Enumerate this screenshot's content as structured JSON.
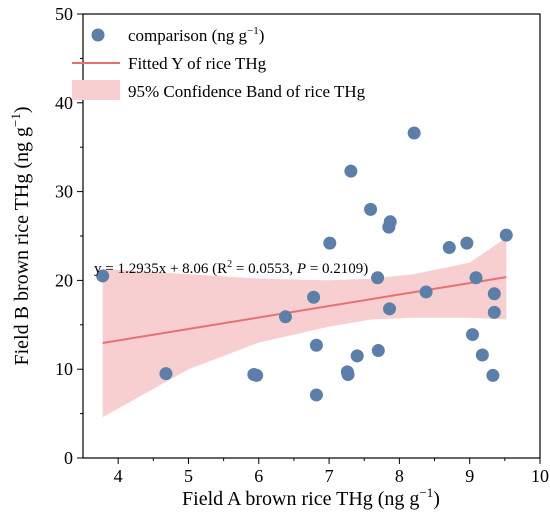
{
  "chart_data": {
    "type": "scatter",
    "xlabel": "Field A brown rice THg (ng g",
    "xlabel_sup": "−1",
    "xlabel_end": ")",
    "ylabel": "Field B brown rice THg (ng g",
    "ylabel_sup": "−1",
    "ylabel_end": ")",
    "xlim": [
      3.5,
      10
    ],
    "ylim": [
      0,
      50
    ],
    "x_ticks": [
      4,
      5,
      6,
      7,
      8,
      9,
      10
    ],
    "y_ticks": [
      0,
      10,
      20,
      30,
      40,
      50
    ],
    "grid": false,
    "legend_position": "top-left",
    "legend": {
      "points_label": "comparison (ng g",
      "points_label_sup": "−1",
      "points_label_end": ")",
      "fit_label": "Fitted Y of rice THg",
      "band_label": "95% Confidence Band of rice THg"
    },
    "colors": {
      "points": "#5b7fa8",
      "fit_line": "#e8716f",
      "band": "#f7cfd0",
      "axis": "#000000"
    },
    "points": [
      {
        "x": 3.78,
        "y": 20.5
      },
      {
        "x": 4.68,
        "y": 9.5
      },
      {
        "x": 5.93,
        "y": 9.4
      },
      {
        "x": 5.97,
        "y": 9.3
      },
      {
        "x": 6.38,
        "y": 15.9
      },
      {
        "x": 6.78,
        "y": 18.1
      },
      {
        "x": 6.82,
        "y": 12.7
      },
      {
        "x": 6.82,
        "y": 7.1
      },
      {
        "x": 7.01,
        "y": 24.2
      },
      {
        "x": 7.26,
        "y": 9.7
      },
      {
        "x": 7.27,
        "y": 9.4
      },
      {
        "x": 7.31,
        "y": 32.3
      },
      {
        "x": 7.4,
        "y": 11.5
      },
      {
        "x": 7.59,
        "y": 28.0
      },
      {
        "x": 7.69,
        "y": 20.3
      },
      {
        "x": 7.7,
        "y": 12.1
      },
      {
        "x": 7.85,
        "y": 26.0
      },
      {
        "x": 7.86,
        "y": 16.8
      },
      {
        "x": 7.87,
        "y": 26.6
      },
      {
        "x": 8.21,
        "y": 36.6
      },
      {
        "x": 8.38,
        "y": 18.7
      },
      {
        "x": 8.71,
        "y": 23.7
      },
      {
        "x": 8.96,
        "y": 24.2
      },
      {
        "x": 9.04,
        "y": 13.9
      },
      {
        "x": 9.09,
        "y": 20.3
      },
      {
        "x": 9.18,
        "y": 11.6
      },
      {
        "x": 9.33,
        "y": 9.3
      },
      {
        "x": 9.35,
        "y": 18.5
      },
      {
        "x": 9.35,
        "y": 16.4
      },
      {
        "x": 9.52,
        "y": 25.1
      }
    ],
    "fit": {
      "slope": 1.2935,
      "intercept": 8.06,
      "x_range": [
        3.78,
        9.52
      ]
    },
    "band": {
      "upper": [
        {
          "x": 3.78,
          "y": 21.3
        },
        {
          "x": 5.0,
          "y": 20.7
        },
        {
          "x": 6.0,
          "y": 20.2
        },
        {
          "x": 7.0,
          "y": 20.0
        },
        {
          "x": 7.6,
          "y": 20.2
        },
        {
          "x": 8.2,
          "y": 20.7
        },
        {
          "x": 9.0,
          "y": 22.0
        },
        {
          "x": 9.52,
          "y": 24.8
        }
      ],
      "lower": [
        {
          "x": 3.78,
          "y": 4.6
        },
        {
          "x": 5.0,
          "y": 10.0
        },
        {
          "x": 6.0,
          "y": 13.0
        },
        {
          "x": 7.0,
          "y": 14.8
        },
        {
          "x": 7.6,
          "y": 15.6
        },
        {
          "x": 8.2,
          "y": 15.8
        },
        {
          "x": 9.0,
          "y": 15.8
        },
        {
          "x": 9.52,
          "y": 15.6
        }
      ]
    },
    "annotation": {
      "prefix": "y = 1.2935x + 8.06 (R",
      "sup": "2",
      "mid": " = 0.0553, ",
      "p_label": "P",
      "suffix": " = 0.2109)"
    }
  }
}
